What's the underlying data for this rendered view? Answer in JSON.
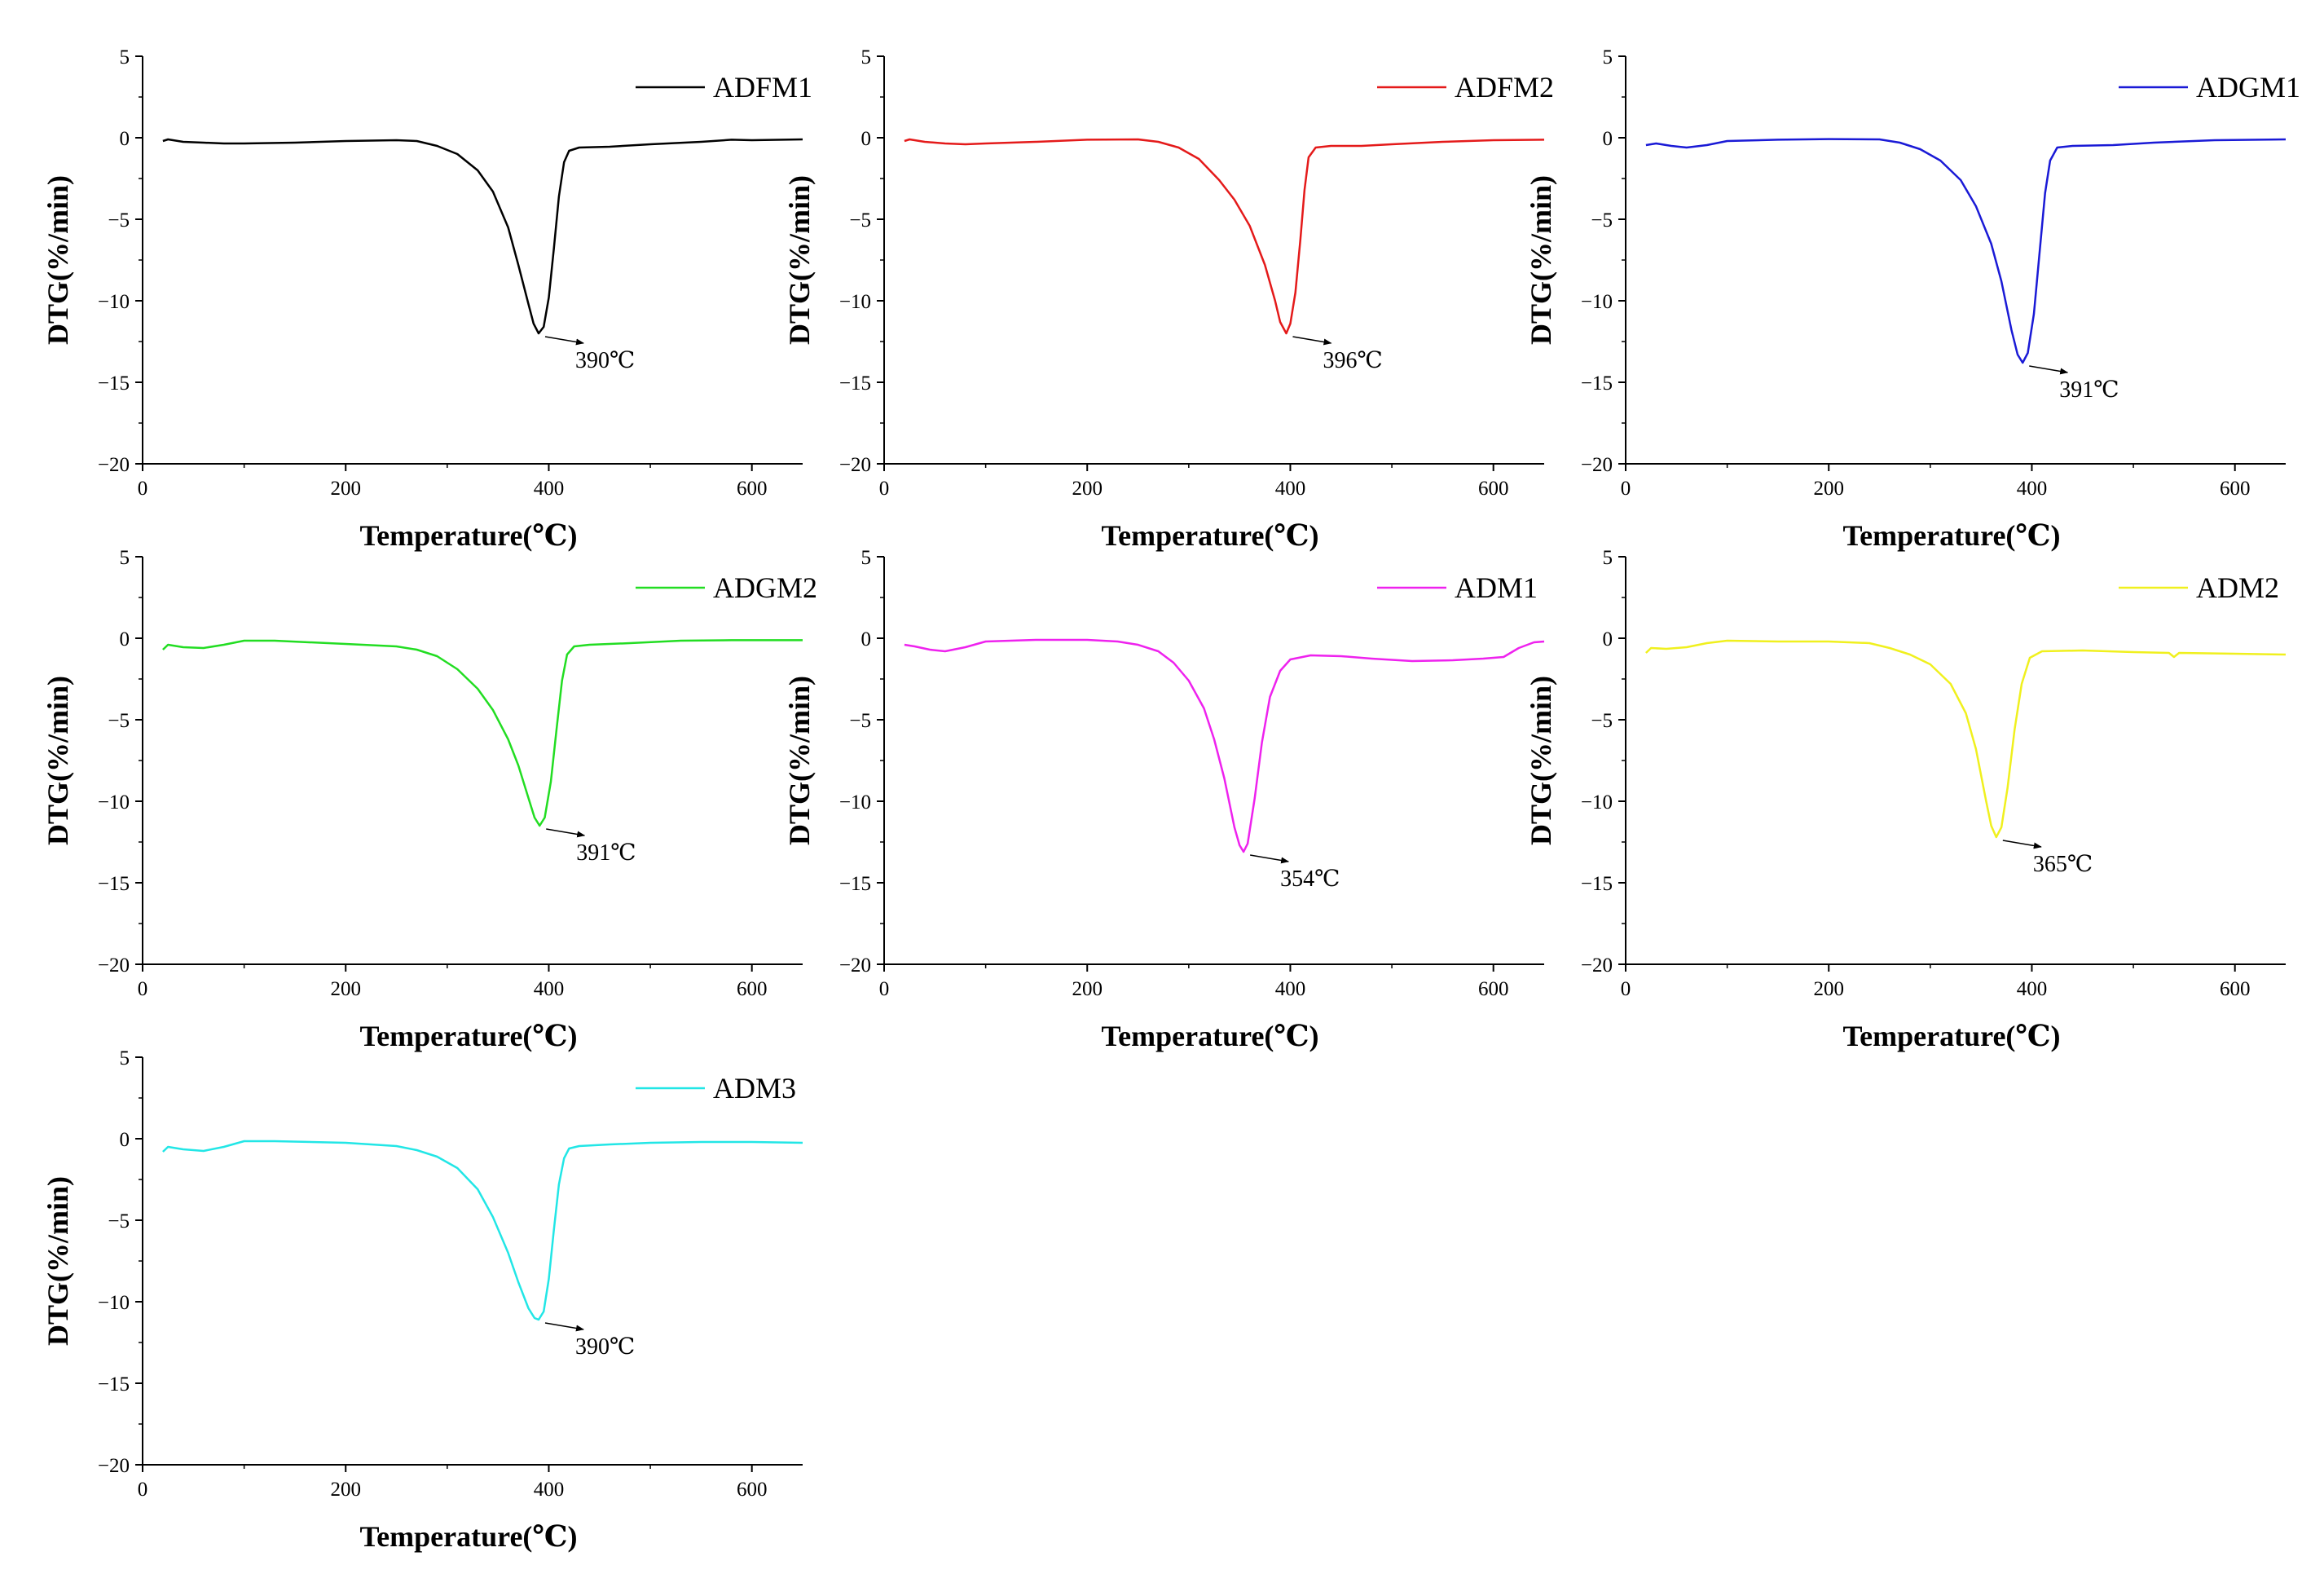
{
  "chart_data": [
    {
      "type": "line",
      "series_name": "ADFM1",
      "color": "#000000",
      "xlabel": "Temperature(℃)",
      "ylabel": "DTG(%/min)",
      "xlim": [
        0,
        650
      ],
      "ylim": [
        -20,
        5
      ],
      "xticks": [
        0,
        200,
        400,
        600
      ],
      "yticks": [
        5,
        0,
        -5,
        -10,
        -15,
        -20
      ],
      "legend": "top-right",
      "annotation": {
        "label": "390℃",
        "x": 390,
        "y": -12.0
      },
      "points": [
        [
          20,
          -0.2
        ],
        [
          25,
          -0.1
        ],
        [
          40,
          -0.25
        ],
        [
          60,
          -0.3
        ],
        [
          80,
          -0.35
        ],
        [
          100,
          -0.35
        ],
        [
          150,
          -0.3
        ],
        [
          200,
          -0.2
        ],
        [
          250,
          -0.15
        ],
        [
          270,
          -0.2
        ],
        [
          290,
          -0.5
        ],
        [
          310,
          -1.0
        ],
        [
          330,
          -2.0
        ],
        [
          345,
          -3.3
        ],
        [
          360,
          -5.5
        ],
        [
          370,
          -7.8
        ],
        [
          380,
          -10.2
        ],
        [
          385,
          -11.4
        ],
        [
          390,
          -12.0
        ],
        [
          395,
          -11.6
        ],
        [
          400,
          -9.8
        ],
        [
          405,
          -6.8
        ],
        [
          410,
          -3.6
        ],
        [
          415,
          -1.5
        ],
        [
          420,
          -0.8
        ],
        [
          430,
          -0.6
        ],
        [
          460,
          -0.55
        ],
        [
          500,
          -0.4
        ],
        [
          550,
          -0.25
        ],
        [
          580,
          -0.12
        ],
        [
          600,
          -0.15
        ],
        [
          650,
          -0.1
        ]
      ]
    },
    {
      "type": "line",
      "series_name": "ADFM2",
      "color": "#e41a1a",
      "xlabel": "Temperature(℃)",
      "ylabel": "DTG(%/min)",
      "xlim": [
        0,
        650
      ],
      "ylim": [
        -20,
        5
      ],
      "xticks": [
        0,
        200,
        400,
        600
      ],
      "yticks": [
        5,
        0,
        -5,
        -10,
        -15,
        -20
      ],
      "legend": "top-right",
      "annotation": {
        "label": "396℃",
        "x": 396,
        "y": -12.0
      },
      "points": [
        [
          20,
          -0.2
        ],
        [
          25,
          -0.1
        ],
        [
          40,
          -0.25
        ],
        [
          60,
          -0.35
        ],
        [
          80,
          -0.4
        ],
        [
          100,
          -0.35
        ],
        [
          150,
          -0.25
        ],
        [
          200,
          -0.12
        ],
        [
          250,
          -0.1
        ],
        [
          270,
          -0.25
        ],
        [
          290,
          -0.6
        ],
        [
          310,
          -1.3
        ],
        [
          330,
          -2.6
        ],
        [
          345,
          -3.8
        ],
        [
          360,
          -5.4
        ],
        [
          375,
          -7.8
        ],
        [
          385,
          -10.0
        ],
        [
          390,
          -11.3
        ],
        [
          396,
          -12.0
        ],
        [
          400,
          -11.4
        ],
        [
          405,
          -9.5
        ],
        [
          410,
          -6.2
        ],
        [
          414,
          -3.2
        ],
        [
          418,
          -1.2
        ],
        [
          425,
          -0.6
        ],
        [
          440,
          -0.5
        ],
        [
          470,
          -0.5
        ],
        [
          500,
          -0.4
        ],
        [
          550,
          -0.25
        ],
        [
          600,
          -0.15
        ],
        [
          650,
          -0.12
        ]
      ]
    },
    {
      "type": "line",
      "series_name": "ADGM1",
      "color": "#1a1ad6",
      "xlabel": "Temperature(℃)",
      "ylabel": "DTG(%/min)",
      "xlim": [
        0,
        650
      ],
      "ylim": [
        -20,
        5
      ],
      "xticks": [
        0,
        200,
        400,
        600
      ],
      "yticks": [
        5,
        0,
        -5,
        -10,
        -15,
        -20
      ],
      "legend": "top-right",
      "annotation": {
        "label": "391℃",
        "x": 391,
        "y": -13.8
      },
      "points": [
        [
          20,
          -0.45
        ],
        [
          30,
          -0.35
        ],
        [
          45,
          -0.5
        ],
        [
          60,
          -0.6
        ],
        [
          80,
          -0.45
        ],
        [
          100,
          -0.2
        ],
        [
          150,
          -0.12
        ],
        [
          200,
          -0.08
        ],
        [
          250,
          -0.1
        ],
        [
          270,
          -0.3
        ],
        [
          290,
          -0.7
        ],
        [
          310,
          -1.4
        ],
        [
          330,
          -2.6
        ],
        [
          345,
          -4.2
        ],
        [
          360,
          -6.5
        ],
        [
          370,
          -8.8
        ],
        [
          380,
          -11.8
        ],
        [
          386,
          -13.3
        ],
        [
          391,
          -13.8
        ],
        [
          396,
          -13.2
        ],
        [
          402,
          -10.8
        ],
        [
          408,
          -6.8
        ],
        [
          413,
          -3.4
        ],
        [
          418,
          -1.4
        ],
        [
          425,
          -0.6
        ],
        [
          440,
          -0.5
        ],
        [
          480,
          -0.45
        ],
        [
          520,
          -0.3
        ],
        [
          580,
          -0.15
        ],
        [
          650,
          -0.1
        ]
      ]
    },
    {
      "type": "line",
      "series_name": "ADGM2",
      "color": "#22dd22",
      "xlabel": "Temperature(℃)",
      "ylabel": "DTG(%/min)",
      "xlim": [
        0,
        650
      ],
      "ylim": [
        -20,
        5
      ],
      "xticks": [
        0,
        200,
        400,
        600
      ],
      "yticks": [
        5,
        0,
        -5,
        -10,
        -15,
        -20
      ],
      "legend": "top-right",
      "annotation": {
        "label": "391℃",
        "x": 391,
        "y": -11.5
      },
      "points": [
        [
          20,
          -0.7
        ],
        [
          25,
          -0.4
        ],
        [
          40,
          -0.55
        ],
        [
          60,
          -0.6
        ],
        [
          80,
          -0.4
        ],
        [
          100,
          -0.15
        ],
        [
          130,
          -0.15
        ],
        [
          200,
          -0.35
        ],
        [
          250,
          -0.5
        ],
        [
          270,
          -0.7
        ],
        [
          290,
          -1.1
        ],
        [
          310,
          -1.9
        ],
        [
          330,
          -3.1
        ],
        [
          345,
          -4.4
        ],
        [
          360,
          -6.2
        ],
        [
          370,
          -7.8
        ],
        [
          380,
          -9.8
        ],
        [
          386,
          -11.0
        ],
        [
          391,
          -11.5
        ],
        [
          396,
          -11.0
        ],
        [
          402,
          -8.8
        ],
        [
          408,
          -5.4
        ],
        [
          413,
          -2.6
        ],
        [
          418,
          -1.0
        ],
        [
          425,
          -0.5
        ],
        [
          440,
          -0.4
        ],
        [
          480,
          -0.3
        ],
        [
          530,
          -0.15
        ],
        [
          580,
          -0.12
        ],
        [
          650,
          -0.12
        ]
      ]
    },
    {
      "type": "line",
      "series_name": "ADM1",
      "color": "#ee22ee",
      "xlabel": "Temperature(℃)",
      "ylabel": "DTG(%/min)",
      "xlim": [
        0,
        650
      ],
      "ylim": [
        -20,
        5
      ],
      "xticks": [
        0,
        200,
        400,
        600
      ],
      "yticks": [
        5,
        0,
        -5,
        -10,
        -15,
        -20
      ],
      "legend": "top-right",
      "annotation": {
        "label": "354℃",
        "x": 354,
        "y": -13.1
      },
      "points": [
        [
          20,
          -0.4
        ],
        [
          30,
          -0.5
        ],
        [
          45,
          -0.7
        ],
        [
          60,
          -0.8
        ],
        [
          80,
          -0.55
        ],
        [
          100,
          -0.2
        ],
        [
          150,
          -0.1
        ],
        [
          200,
          -0.1
        ],
        [
          230,
          -0.2
        ],
        [
          250,
          -0.4
        ],
        [
          270,
          -0.8
        ],
        [
          285,
          -1.5
        ],
        [
          300,
          -2.6
        ],
        [
          315,
          -4.3
        ],
        [
          325,
          -6.2
        ],
        [
          335,
          -8.6
        ],
        [
          345,
          -11.6
        ],
        [
          350,
          -12.7
        ],
        [
          354,
          -13.1
        ],
        [
          358,
          -12.6
        ],
        [
          365,
          -9.8
        ],
        [
          372,
          -6.4
        ],
        [
          380,
          -3.6
        ],
        [
          390,
          -2.0
        ],
        [
          400,
          -1.3
        ],
        [
          420,
          -1.05
        ],
        [
          450,
          -1.1
        ],
        [
          480,
          -1.25
        ],
        [
          520,
          -1.4
        ],
        [
          560,
          -1.35
        ],
        [
          590,
          -1.25
        ],
        [
          610,
          -1.15
        ],
        [
          625,
          -0.6
        ],
        [
          640,
          -0.25
        ],
        [
          650,
          -0.2
        ]
      ]
    },
    {
      "type": "line",
      "series_name": "ADM2",
      "color": "#f0f01e",
      "xlabel": "Temperature(℃)",
      "ylabel": "DTG(%/min)",
      "xlim": [
        0,
        650
      ],
      "ylim": [
        -20,
        5
      ],
      "xticks": [
        0,
        200,
        400,
        600
      ],
      "yticks": [
        5,
        0,
        -5,
        -10,
        -15,
        -20
      ],
      "legend": "top-right",
      "annotation": {
        "label": "365℃",
        "x": 365,
        "y": -12.2
      },
      "points": [
        [
          20,
          -0.9
        ],
        [
          25,
          -0.6
        ],
        [
          40,
          -0.65
        ],
        [
          60,
          -0.55
        ],
        [
          80,
          -0.3
        ],
        [
          100,
          -0.15
        ],
        [
          150,
          -0.2
        ],
        [
          200,
          -0.2
        ],
        [
          240,
          -0.3
        ],
        [
          260,
          -0.6
        ],
        [
          280,
          -1.0
        ],
        [
          300,
          -1.6
        ],
        [
          320,
          -2.8
        ],
        [
          335,
          -4.6
        ],
        [
          345,
          -6.8
        ],
        [
          355,
          -10.0
        ],
        [
          360,
          -11.5
        ],
        [
          365,
          -12.2
        ],
        [
          370,
          -11.6
        ],
        [
          376,
          -9.2
        ],
        [
          383,
          -5.6
        ],
        [
          390,
          -2.8
        ],
        [
          398,
          -1.2
        ],
        [
          410,
          -0.8
        ],
        [
          450,
          -0.75
        ],
        [
          500,
          -0.85
        ],
        [
          535,
          -0.9
        ],
        [
          540,
          -1.15
        ],
        [
          545,
          -0.9
        ],
        [
          600,
          -0.95
        ],
        [
          650,
          -1.0
        ]
      ]
    },
    {
      "type": "line",
      "series_name": "ADM3",
      "color": "#22e6e6",
      "xlabel": "Temperature(℃)",
      "ylabel": "DTG(%/min)",
      "xlim": [
        0,
        650
      ],
      "ylim": [
        -20,
        5
      ],
      "xticks": [
        0,
        200,
        400,
        600
      ],
      "yticks": [
        5,
        0,
        -5,
        -10,
        -15,
        -20
      ],
      "legend": "top-right",
      "annotation": {
        "label": "390℃",
        "x": 390,
        "y": -11.1
      },
      "points": [
        [
          20,
          -0.8
        ],
        [
          25,
          -0.5
        ],
        [
          40,
          -0.65
        ],
        [
          60,
          -0.75
        ],
        [
          80,
          -0.5
        ],
        [
          100,
          -0.15
        ],
        [
          130,
          -0.15
        ],
        [
          200,
          -0.25
        ],
        [
          250,
          -0.45
        ],
        [
          270,
          -0.7
        ],
        [
          290,
          -1.1
        ],
        [
          310,
          -1.8
        ],
        [
          330,
          -3.1
        ],
        [
          345,
          -4.8
        ],
        [
          360,
          -7.0
        ],
        [
          370,
          -8.8
        ],
        [
          380,
          -10.4
        ],
        [
          386,
          -11.0
        ],
        [
          390,
          -11.1
        ],
        [
          395,
          -10.6
        ],
        [
          400,
          -8.6
        ],
        [
          405,
          -5.6
        ],
        [
          410,
          -2.8
        ],
        [
          415,
          -1.2
        ],
        [
          420,
          -0.6
        ],
        [
          430,
          -0.45
        ],
        [
          460,
          -0.35
        ],
        [
          500,
          -0.25
        ],
        [
          550,
          -0.2
        ],
        [
          600,
          -0.2
        ],
        [
          650,
          -0.25
        ]
      ]
    }
  ]
}
